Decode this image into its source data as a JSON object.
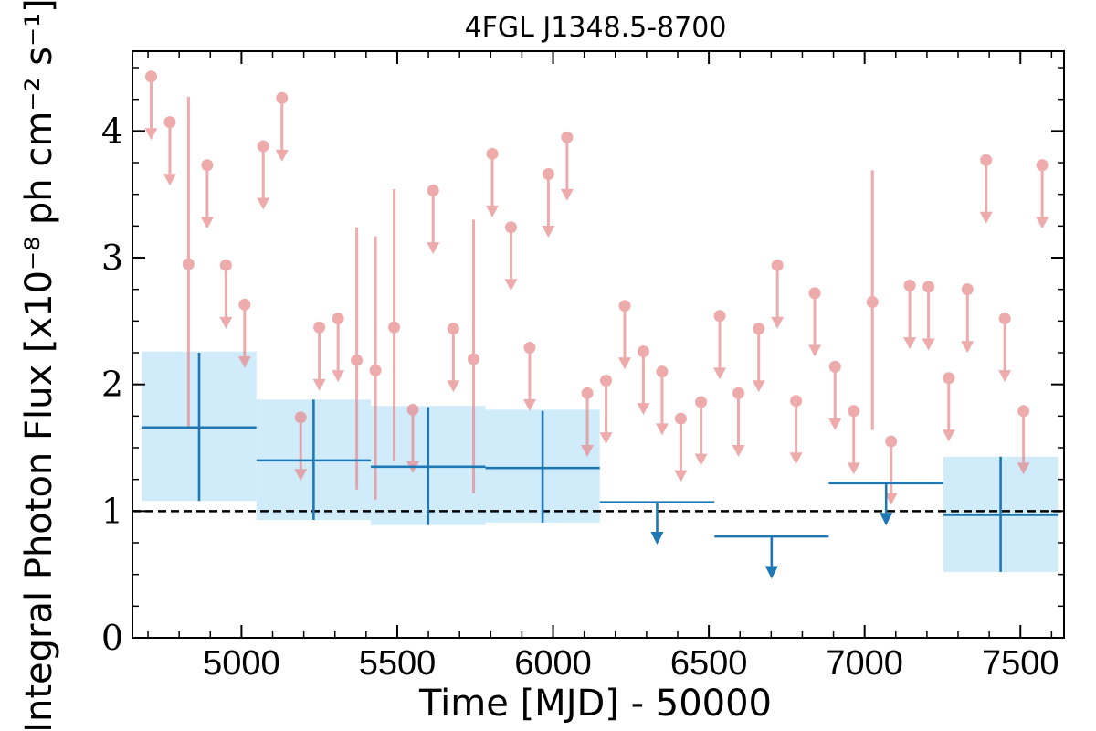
{
  "chart_data": {
    "type": "scatter",
    "title": "4FGL J1348.5-8700",
    "xlabel": "Time [MJD] - 50000",
    "ylabel": "Integral Photon Flux [x10⁻⁸ ph cm⁻² s⁻¹]",
    "xlim": [
      4650,
      7640
    ],
    "ylim": [
      0,
      4.63
    ],
    "x_ticks": [
      "5000",
      "5500",
      "6000",
      "6500",
      "7000",
      "7500"
    ],
    "y_ticks": [
      "0",
      "1",
      "2",
      "3",
      "4"
    ],
    "reference_line": {
      "y": 1.0,
      "style": "dashed",
      "color": "#000000"
    },
    "colors": {
      "fine_series": "#e8888a",
      "coarse_series": "#1f77b4",
      "coarse_band": "#d0ecfb"
    },
    "series": [
      {
        "bin_width_days": 60,
        "points": [
          {
            "x": 4710,
            "y": 4.43,
            "upper_limit": true
          },
          {
            "x": 4770,
            "y": 4.07,
            "upper_limit": true
          },
          {
            "x": 4830,
            "y": 2.95,
            "err_low": 1.28,
            "err_high": 1.32
          },
          {
            "x": 4890,
            "y": 3.73,
            "upper_limit": true
          },
          {
            "x": 4950,
            "y": 2.94,
            "upper_limit": true
          },
          {
            "x": 5010,
            "y": 2.63,
            "upper_limit": true
          },
          {
            "x": 5070,
            "y": 3.88,
            "upper_limit": true
          },
          {
            "x": 5130,
            "y": 4.26,
            "upper_limit": true
          },
          {
            "x": 5190,
            "y": 1.74,
            "upper_limit": true
          },
          {
            "x": 5250,
            "y": 2.45,
            "upper_limit": true
          },
          {
            "x": 5310,
            "y": 2.52,
            "upper_limit": true
          },
          {
            "x": 5370,
            "y": 2.19,
            "err_low": 1.02,
            "err_high": 1.05
          },
          {
            "x": 5430,
            "y": 2.11,
            "err_low": 1.02,
            "err_high": 1.06
          },
          {
            "x": 5490,
            "y": 2.45,
            "err_low": 1.05,
            "err_high": 1.09
          },
          {
            "x": 5550,
            "y": 1.8,
            "upper_limit": true
          },
          {
            "x": 5615,
            "y": 3.53,
            "upper_limit": true
          },
          {
            "x": 5680,
            "y": 2.44,
            "upper_limit": true
          },
          {
            "x": 5745,
            "y": 2.2,
            "err_low": 1.06,
            "err_high": 1.1
          },
          {
            "x": 5805,
            "y": 3.82,
            "upper_limit": true
          },
          {
            "x": 5865,
            "y": 3.24,
            "upper_limit": true
          },
          {
            "x": 5925,
            "y": 2.29,
            "upper_limit": true
          },
          {
            "x": 5985,
            "y": 3.66,
            "upper_limit": true
          },
          {
            "x": 6045,
            "y": 3.95,
            "upper_limit": true
          },
          {
            "x": 6110,
            "y": 1.93,
            "upper_limit": true
          },
          {
            "x": 6170,
            "y": 2.03,
            "upper_limit": true
          },
          {
            "x": 6230,
            "y": 2.62,
            "upper_limit": true
          },
          {
            "x": 6290,
            "y": 2.26,
            "upper_limit": true
          },
          {
            "x": 6350,
            "y": 2.1,
            "upper_limit": true
          },
          {
            "x": 6410,
            "y": 1.73,
            "upper_limit": true
          },
          {
            "x": 6475,
            "y": 1.86,
            "upper_limit": true
          },
          {
            "x": 6535,
            "y": 2.54,
            "upper_limit": true
          },
          {
            "x": 6595,
            "y": 1.93,
            "upper_limit": true
          },
          {
            "x": 6660,
            "y": 2.44,
            "upper_limit": true
          },
          {
            "x": 6720,
            "y": 2.94,
            "upper_limit": true
          },
          {
            "x": 6780,
            "y": 1.87,
            "upper_limit": true
          },
          {
            "x": 6840,
            "y": 2.72,
            "upper_limit": true
          },
          {
            "x": 6905,
            "y": 2.14,
            "upper_limit": true
          },
          {
            "x": 6965,
            "y": 1.79,
            "upper_limit": true
          },
          {
            "x": 7025,
            "y": 2.65,
            "err_low": 1.01,
            "err_high": 1.04
          },
          {
            "x": 7085,
            "y": 1.55,
            "upper_limit": true
          },
          {
            "x": 7145,
            "y": 2.78,
            "upper_limit": true
          },
          {
            "x": 7205,
            "y": 2.77,
            "upper_limit": true
          },
          {
            "x": 7270,
            "y": 2.05,
            "upper_limit": true
          },
          {
            "x": 7330,
            "y": 2.75,
            "upper_limit": true
          },
          {
            "x": 7390,
            "y": 3.77,
            "upper_limit": true
          },
          {
            "x": 7450,
            "y": 2.52,
            "upper_limit": true
          },
          {
            "x": 7510,
            "y": 1.79,
            "upper_limit": true
          },
          {
            "x": 7570,
            "y": 3.73,
            "upper_limit": true
          }
        ]
      },
      {
        "bins": [
          {
            "x_start": 4680,
            "x_end": 5048,
            "y": 1.66,
            "y_low": 1.08,
            "y_high": 2.25,
            "band_low": 1.08,
            "band_high": 2.26
          },
          {
            "x_start": 5048,
            "x_end": 5415,
            "y": 1.4,
            "y_low": 0.93,
            "y_high": 1.88,
            "band_low": 0.93,
            "band_high": 1.88
          },
          {
            "x_start": 5415,
            "x_end": 5783,
            "y": 1.35,
            "y_low": 0.89,
            "y_high": 1.82,
            "band_low": 0.89,
            "band_high": 1.83
          },
          {
            "x_start": 5783,
            "x_end": 6150,
            "y": 1.34,
            "y_low": 0.91,
            "y_high": 1.79,
            "band_low": 0.91,
            "band_high": 1.8
          },
          {
            "x_start": 6150,
            "x_end": 6518,
            "y": 1.07,
            "upper_limit": true
          },
          {
            "x_start": 6518,
            "x_end": 6885,
            "y": 0.8,
            "upper_limit": true
          },
          {
            "x_start": 6885,
            "x_end": 7253,
            "y": 1.22,
            "upper_limit": true
          },
          {
            "x_start": 7253,
            "x_end": 7620,
            "y": 0.97,
            "y_low": 0.52,
            "y_high": 1.43,
            "band_low": 0.52,
            "band_high": 1.43
          }
        ]
      }
    ]
  }
}
